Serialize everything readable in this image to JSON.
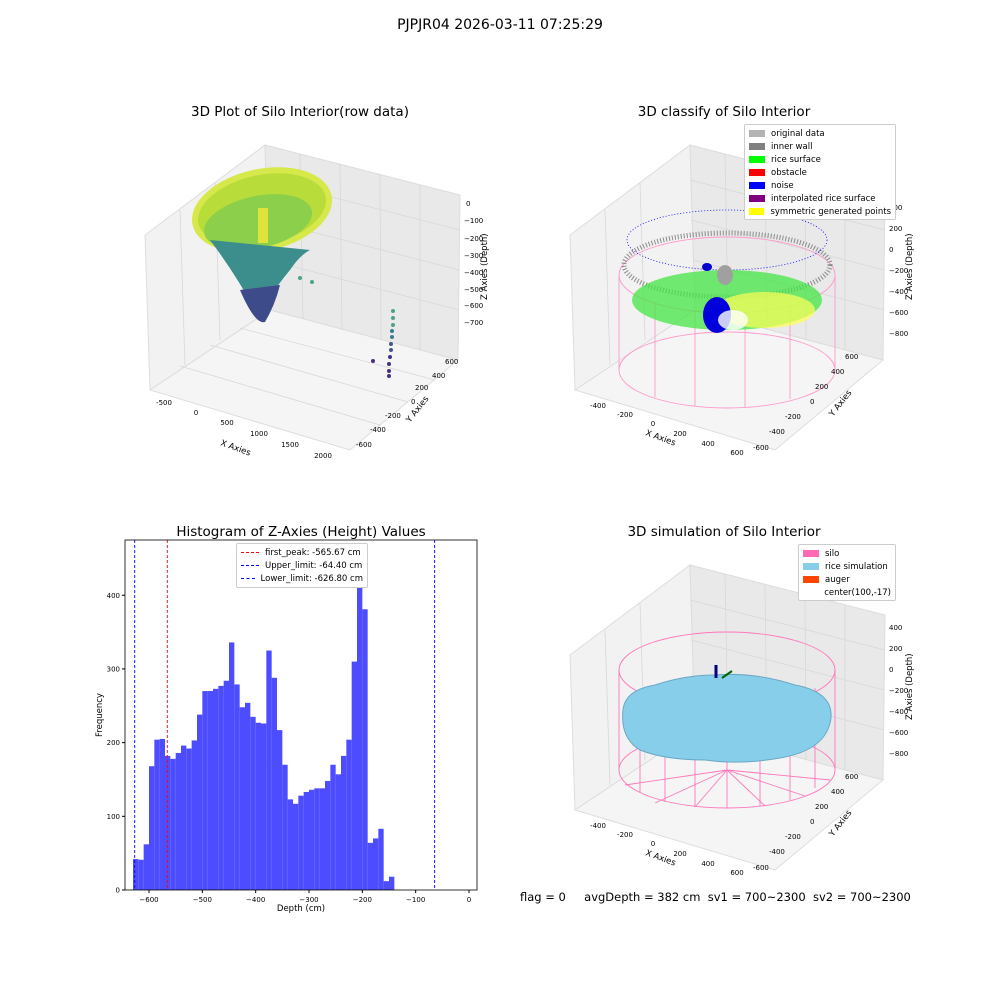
{
  "suptitle": "PJPJR04 2026-03-11 07:25:29",
  "footer": {
    "flag": "flag = 0",
    "avg": "avgDepth = 382 cm",
    "sv1": "sv1 = 700~2300",
    "sv2": "sv2 = 700~2300"
  },
  "panel1": {
    "title": "3D Plot of Silo Interior(row data)",
    "xlabel": "X Axies",
    "ylabel": "Y Axies",
    "zlabel": "Z Axies (Depth)",
    "xticks": [
      "-500",
      "0",
      "500",
      "1000",
      "1500",
      "2000"
    ],
    "yticks": [
      "600",
      "400",
      "200",
      "0",
      "-200",
      "-400",
      "-600"
    ],
    "zticks": [
      "0",
      "−100",
      "−200",
      "−300",
      "−400",
      "−500",
      "−600",
      "−700"
    ]
  },
  "panel2": {
    "title": "3D classify of Silo Interior",
    "xlabel": "X Axies",
    "ylabel": "Y Axies",
    "zlabel": "Z Axies (Depth)",
    "xticks": [
      "-400",
      "-200",
      "0",
      "200",
      "400",
      "600"
    ],
    "yticks": [
      "600",
      "400",
      "200",
      "0",
      "-200",
      "-400",
      "-600"
    ],
    "zticks": [
      "400",
      "200",
      "0",
      "−200",
      "−400",
      "−600",
      "−800"
    ],
    "legend": [
      {
        "label": "original data",
        "color": "#b3b3b3"
      },
      {
        "label": "inner wall",
        "color": "#808080"
      },
      {
        "label": "rice surface",
        "color": "#00ff00"
      },
      {
        "label": "obstacle",
        "color": "#ff0000"
      },
      {
        "label": "noise",
        "color": "#0000ff"
      },
      {
        "label": "interpolated rice surface",
        "color": "#800080"
      },
      {
        "label": "symmetric generated points",
        "color": "#ffff00"
      }
    ]
  },
  "panel4": {
    "title": "3D simulation of Silo Interior",
    "xlabel": "X Axies",
    "ylabel": "Y Axies",
    "zlabel": "Z Axies (Depth)",
    "xticks": [
      "-400",
      "-200",
      "0",
      "200",
      "400",
      "600"
    ],
    "yticks": [
      "600",
      "400",
      "200",
      "0",
      "-200",
      "-400",
      "-600"
    ],
    "zticks": [
      "400",
      "200",
      "0",
      "−200",
      "−400",
      "−600",
      "−800"
    ],
    "legend": [
      {
        "label": "silo",
        "color": "#ff69b4"
      },
      {
        "label": "rice simulation",
        "color": "#87ceeb"
      },
      {
        "label": "auger",
        "color": "#ff4500"
      },
      {
        "label": "center(100,-17)",
        "color": ""
      }
    ]
  },
  "chart_data": {
    "type": "bar",
    "title": "Histogram of Z-Axies (Height) Values",
    "xlabel": "Depth (cm)",
    "ylabel": "Frequency",
    "xlim": [
      -645,
      15
    ],
    "ylim": [
      0,
      475
    ],
    "xticks": [
      -600,
      -500,
      -400,
      -300,
      -200,
      -100,
      0
    ],
    "yticks": [
      0,
      100,
      200,
      300,
      400
    ],
    "bin_start": -630,
    "bin_width": 10,
    "values": [
      42,
      41,
      62,
      168,
      204,
      205,
      182,
      178,
      186,
      196,
      192,
      203,
      238,
      270,
      270,
      273,
      277,
      284,
      336,
      279,
      248,
      254,
      235,
      227,
      226,
      325,
      288,
      217,
      170,
      123,
      117,
      128,
      133,
      136,
      138,
      138,
      148,
      170,
      157,
      182,
      204,
      310,
      453,
      381,
      64,
      70,
      83,
      12,
      18
    ],
    "color": "#4d4dff",
    "lines": [
      {
        "label": "first_peak: -565.67 cm",
        "x": -565.67,
        "color": "#ff0000"
      },
      {
        "label": "Upper_limit: -64.40 cm",
        "x": -64.4,
        "color": "#0000ff"
      },
      {
        "label": "Lower_limit: -626.80 cm",
        "x": -626.8,
        "color": "#0000ff"
      }
    ]
  }
}
